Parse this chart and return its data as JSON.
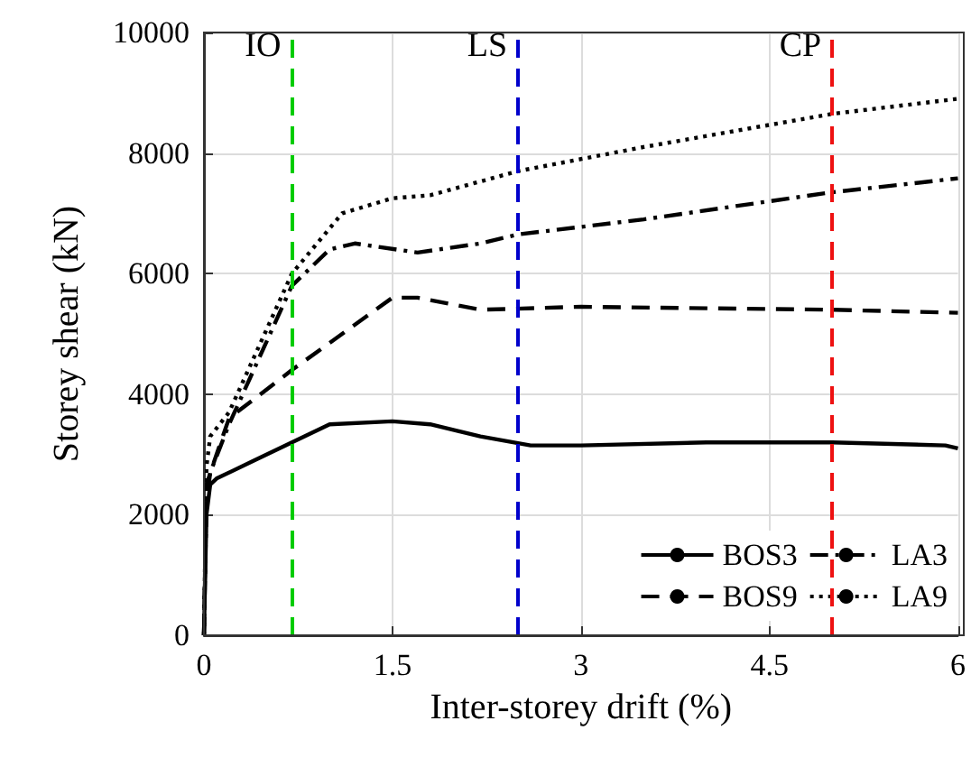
{
  "chart_data": {
    "type": "line",
    "xlabel": "Inter-storey drift (%)",
    "ylabel": "Storey shear (kN)",
    "xlim": [
      0,
      6
    ],
    "ylim": [
      0,
      10000
    ],
    "xticks": [
      0,
      1.5,
      3,
      4.5,
      6
    ],
    "yticks": [
      0,
      2000,
      4000,
      6000,
      8000,
      10000
    ],
    "grid": true,
    "legend": "bottom right",
    "marker": "none",
    "series": [
      {
        "name": "BOS3",
        "color": "#000000",
        "line_style": "solid",
        "x": [
          0,
          0.02,
          0.05,
          0.1,
          0.4,
          0.7,
          1.0,
          1.5,
          1.8,
          2.2,
          2.6,
          3,
          4,
          5,
          5.9,
          6
        ],
        "values": [
          0,
          2000,
          2500,
          2600,
          2900,
          3200,
          3500,
          3550,
          3500,
          3300,
          3150,
          3150,
          3200,
          3200,
          3150,
          3100
        ]
      },
      {
        "name": "BOS9",
        "color": "#000000",
        "line_style": "dashed",
        "x": [
          0,
          0.02,
          0.1,
          0.2,
          0.7,
          1.5,
          1.7,
          2.2,
          3,
          5,
          6
        ],
        "values": [
          0,
          2500,
          3000,
          3600,
          4400,
          5600,
          5600,
          5400,
          5450,
          5400,
          5350
        ]
      },
      {
        "name": "LA3",
        "color": "#000000",
        "line_style": "dashdot",
        "x": [
          0,
          0.02,
          0.05,
          0.2,
          0.7,
          1.0,
          1.2,
          1.7,
          2.2,
          2.5,
          3.5,
          5,
          6
        ],
        "values": [
          0,
          2200,
          2700,
          3500,
          5800,
          6400,
          6500,
          6350,
          6500,
          6650,
          6900,
          7350,
          7580
        ]
      },
      {
        "name": "LA9",
        "color": "#000000",
        "line_style": "dotted",
        "x": [
          0,
          0.02,
          0.05,
          0.2,
          0.7,
          1.1,
          1.5,
          1.8,
          2.5,
          3.5,
          5,
          6
        ],
        "values": [
          0,
          2800,
          3300,
          3700,
          6000,
          7000,
          7250,
          7300,
          7700,
          8100,
          8650,
          8900
        ]
      }
    ],
    "ref_lines": [
      {
        "axis": "x",
        "value": 0.7,
        "label": "IO",
        "color": "#00cc00",
        "line_style": "dashed"
      },
      {
        "axis": "x",
        "value": 2.5,
        "label": "LS",
        "color": "#0000cc",
        "line_style": "dashed"
      },
      {
        "axis": "x",
        "value": 5,
        "label": "CP",
        "color": "#ee1111",
        "line_style": "dashed"
      }
    ]
  }
}
